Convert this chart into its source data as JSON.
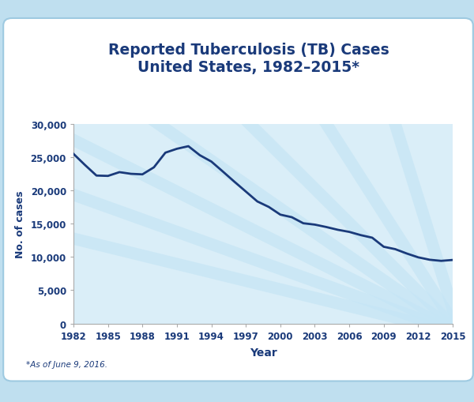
{
  "title_line1": "Reported Tuberculosis (TB) Cases",
  "title_line2": "United States, 1982–2015*",
  "xlabel": "Year",
  "ylabel": "No. of cases",
  "footnote": "*As of June 9, 2016.",
  "title_color": "#1a3a7a",
  "line_color": "#1a3a7a",
  "axis_color": "#1a3a7a",
  "tick_label_color": "#1a3a7a",
  "background_outer": "#bfdfef",
  "background_card": "#ffffff",
  "background_inner": "#daeef8",
  "ray_color": "#c5e5f5",
  "border_color": "#9ecae1",
  "ylim": [
    0,
    30000
  ],
  "yticks": [
    0,
    5000,
    10000,
    15000,
    20000,
    25000,
    30000
  ],
  "xticks": [
    1982,
    1985,
    1988,
    1991,
    1994,
    1997,
    2000,
    2003,
    2006,
    2009,
    2012,
    2015
  ],
  "years": [
    1982,
    1983,
    1984,
    1985,
    1986,
    1987,
    1988,
    1989,
    1990,
    1991,
    1992,
    1993,
    1994,
    1995,
    1996,
    1997,
    1998,
    1999,
    2000,
    2001,
    2002,
    2003,
    2004,
    2005,
    2006,
    2007,
    2008,
    2009,
    2010,
    2011,
    2012,
    2013,
    2014,
    2015
  ],
  "cases": [
    25520,
    23846,
    22255,
    22201,
    22768,
    22517,
    22436,
    23495,
    25701,
    26283,
    26673,
    25313,
    24361,
    22860,
    21337,
    19851,
    18361,
    17531,
    16377,
    15989,
    15078,
    14874,
    14511,
    14097,
    13779,
    13293,
    12904,
    11540,
    11182,
    10528,
    9951,
    9588,
    9421,
    9557
  ],
  "title_fontsize": 13.5,
  "axis_label_fontsize": 10,
  "tick_fontsize": 8.5,
  "footnote_fontsize": 7.5
}
